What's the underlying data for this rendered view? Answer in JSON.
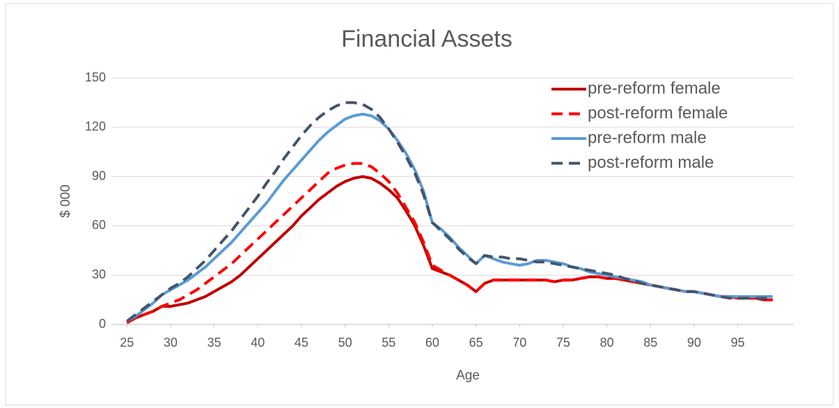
{
  "chart_data": {
    "type": "line",
    "title": "Financial Assets",
    "x_label": "Age",
    "y_label": "$ 000",
    "x": [
      25,
      26,
      27,
      28,
      29,
      30,
      31,
      32,
      33,
      34,
      35,
      36,
      37,
      38,
      39,
      40,
      41,
      42,
      43,
      44,
      45,
      46,
      47,
      48,
      49,
      50,
      51,
      52,
      53,
      54,
      55,
      56,
      57,
      58,
      59,
      60,
      61,
      62,
      63,
      64,
      65,
      66,
      67,
      68,
      69,
      70,
      71,
      72,
      73,
      74,
      75,
      76,
      77,
      78,
      79,
      80,
      81,
      82,
      83,
      84,
      85,
      86,
      87,
      88,
      89,
      90,
      91,
      92,
      93,
      94,
      95,
      96,
      97,
      98,
      99
    ],
    "xlim": [
      24.5,
      99.5
    ],
    "xticks": [
      25,
      30,
      35,
      40,
      45,
      50,
      55,
      60,
      65,
      70,
      75,
      80,
      85,
      90,
      95
    ],
    "ylim": [
      0,
      150
    ],
    "yticks": [
      0,
      30,
      60,
      90,
      120,
      150
    ],
    "grid": true,
    "legend": "upper right",
    "series": [
      {
        "name": "pre-reform female",
        "color": "#c00000",
        "dash": false,
        "values": [
          1,
          4,
          6,
          8,
          11,
          11,
          12,
          13,
          15,
          17,
          20,
          23,
          26,
          30,
          35,
          40,
          45,
          50,
          55,
          60,
          66,
          71,
          76,
          80,
          84,
          87,
          89,
          90,
          89,
          86,
          82,
          77,
          69,
          60,
          48,
          34,
          32,
          30,
          27,
          24,
          20,
          25,
          27,
          27,
          27,
          27,
          27,
          27,
          27,
          26,
          27,
          27,
          28,
          29,
          29,
          28,
          28,
          27,
          26,
          25,
          24,
          23,
          22,
          21,
          20,
          20,
          19,
          18,
          17,
          17,
          16,
          16,
          16,
          15,
          15
        ]
      },
      {
        "name": "post-reform female",
        "color": "#ff0000",
        "dash": true,
        "values": [
          1,
          4,
          6,
          8,
          11,
          13,
          15,
          18,
          21,
          25,
          29,
          33,
          37,
          42,
          47,
          52,
          57,
          62,
          67,
          72,
          77,
          82,
          87,
          92,
          95,
          97,
          98,
          98,
          96,
          92,
          87,
          80,
          71,
          62,
          50,
          36,
          33,
          30,
          27,
          24,
          20,
          25,
          27,
          27,
          27,
          27,
          27,
          27,
          27,
          26,
          27,
          27,
          28,
          29,
          29,
          28,
          28,
          27,
          26,
          25,
          24,
          23,
          22,
          21,
          20,
          20,
          19,
          18,
          17,
          17,
          16,
          16,
          16,
          15,
          15
        ]
      },
      {
        "name": "pre-reform male",
        "color": "#5b9bd5",
        "dash": false,
        "values": [
          2,
          5,
          9,
          13,
          18,
          21,
          24,
          27,
          31,
          35,
          40,
          45,
          50,
          56,
          62,
          68,
          74,
          81,
          88,
          94,
          100,
          106,
          112,
          117,
          121,
          125,
          127,
          128,
          127,
          124,
          119,
          112,
          104,
          94,
          81,
          62,
          58,
          53,
          47,
          42,
          37,
          42,
          40,
          38,
          37,
          36,
          37,
          39,
          39,
          38,
          37,
          35,
          34,
          32,
          31,
          30,
          29,
          28,
          27,
          26,
          24,
          23,
          22,
          21,
          20,
          20,
          19,
          18,
          17,
          17,
          17,
          17,
          17,
          17,
          17
        ]
      },
      {
        "name": "post-reform male",
        "color": "#44546a",
        "dash": true,
        "values": [
          2,
          6,
          10,
          14,
          18,
          22,
          25,
          29,
          34,
          39,
          45,
          51,
          57,
          64,
          71,
          78,
          86,
          93,
          101,
          108,
          115,
          121,
          126,
          130,
          133,
          135,
          135,
          134,
          131,
          126,
          119,
          111,
          102,
          92,
          79,
          62,
          57,
          52,
          46,
          41,
          37,
          42,
          41,
          41,
          40,
          40,
          39,
          38,
          38,
          37,
          36,
          35,
          34,
          33,
          32,
          31,
          30,
          28,
          27,
          25,
          24,
          23,
          22,
          21,
          20,
          20,
          19,
          18,
          17,
          16,
          16,
          16,
          16,
          16,
          16
        ]
      }
    ]
  }
}
